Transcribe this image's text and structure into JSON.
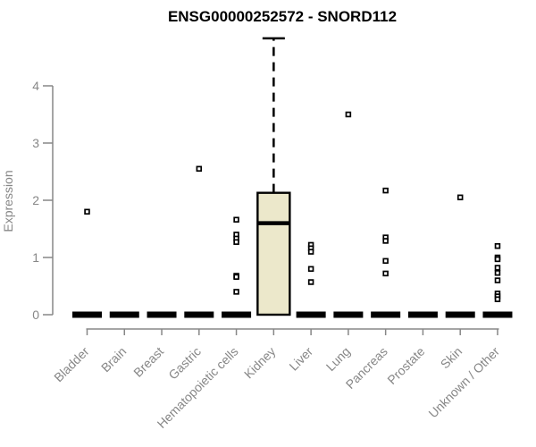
{
  "chart_data": {
    "type": "box",
    "title": "ENSG00000252572 - SNORD112",
    "ylabel": "Expression",
    "xlabel": "",
    "ylim": [
      0,
      4.9
    ],
    "yticks": [
      0,
      1,
      2,
      3,
      4
    ],
    "grid": false,
    "legend": "none",
    "categories": [
      "Bladder",
      "Brain",
      "Breast",
      "Gastric",
      "Hematopoietic cells",
      "Kidney",
      "Liver",
      "Lung",
      "Pancreas",
      "Prostate",
      "Skin",
      "Unknown / Other"
    ],
    "series": [
      {
        "name": "Bladder",
        "q1": 0,
        "median": 0,
        "q3": 0,
        "whisker_low": 0,
        "whisker_high": 0,
        "outliers": [
          1.8
        ]
      },
      {
        "name": "Brain",
        "q1": 0,
        "median": 0,
        "q3": 0,
        "whisker_low": 0,
        "whisker_high": 0,
        "outliers": []
      },
      {
        "name": "Breast",
        "q1": 0,
        "median": 0,
        "q3": 0,
        "whisker_low": 0,
        "whisker_high": 0,
        "outliers": []
      },
      {
        "name": "Gastric",
        "q1": 0,
        "median": 0,
        "q3": 0,
        "whisker_low": 0,
        "whisker_high": 0,
        "outliers": [
          2.55
        ]
      },
      {
        "name": "Hematopoietic cells",
        "q1": 0,
        "median": 0,
        "q3": 0,
        "whisker_low": 0,
        "whisker_high": 0,
        "outliers": [
          1.66,
          1.4,
          1.33,
          1.27,
          0.68,
          0.66,
          0.4
        ]
      },
      {
        "name": "Kidney",
        "q1": 0,
        "median": 1.6,
        "q3": 2.13,
        "whisker_low": 0,
        "whisker_high": 4.83,
        "outliers": []
      },
      {
        "name": "Liver",
        "q1": 0,
        "median": 0,
        "q3": 0,
        "whisker_low": 0,
        "whisker_high": 0,
        "outliers": [
          1.22,
          1.16,
          1.1,
          0.8,
          0.57
        ]
      },
      {
        "name": "Lung",
        "q1": 0,
        "median": 0,
        "q3": 0,
        "whisker_low": 0,
        "whisker_high": 0,
        "outliers": [
          3.5
        ]
      },
      {
        "name": "Pancreas",
        "q1": 0,
        "median": 0,
        "q3": 0,
        "whisker_low": 0,
        "whisker_high": 0,
        "outliers": [
          2.17,
          1.35,
          1.29,
          0.94,
          0.72
        ]
      },
      {
        "name": "Prostate",
        "q1": 0,
        "median": 0,
        "q3": 0,
        "whisker_low": 0,
        "whisker_high": 0,
        "outliers": []
      },
      {
        "name": "Skin",
        "q1": 0,
        "median": 0,
        "q3": 0,
        "whisker_low": 0,
        "whisker_high": 0,
        "outliers": [
          2.05
        ]
      },
      {
        "name": "Unknown / Other",
        "q1": 0,
        "median": 0,
        "q3": 0,
        "whisker_low": 0,
        "whisker_high": 0,
        "outliers": [
          1.2,
          1.0,
          0.97,
          0.82,
          0.73,
          0.6,
          0.37,
          0.32,
          0.27
        ]
      }
    ],
    "colors": {
      "box_fill": "#ece8cb",
      "box_border": "#000000",
      "median": "#000000",
      "outlier": "#000000",
      "axis": "#878787",
      "title": "#000000",
      "background": "#ffffff"
    }
  }
}
